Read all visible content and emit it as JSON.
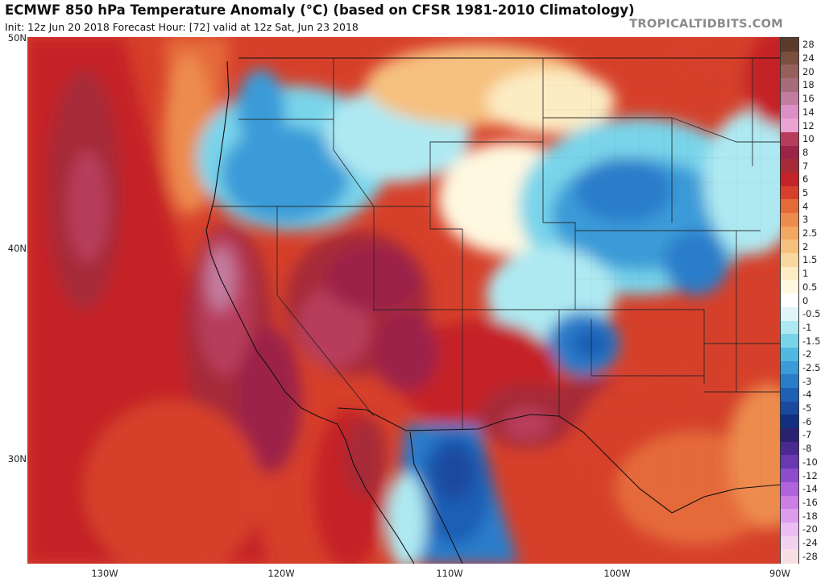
{
  "header": {
    "title": "ECMWF 850 hPa Temperature Anomaly (°C) (based on CFSR 1981-2010 Climatology)",
    "subtitle": "Init: 12z Jun 20 2018   Forecast Hour: [72]   valid at 12z Sat, Jun 23 2018",
    "brand": "TROPICALTIDBITS.COM"
  },
  "map": {
    "region": "Western and Central United States",
    "variable": "850 hPa temperature anomaly",
    "lat_labels": [
      "50N",
      "40N",
      "30N"
    ],
    "lon_labels": [
      "130W",
      "120W",
      "110W",
      "100W",
      "90W"
    ]
  },
  "colorbar": {
    "labels": [
      "28",
      "24",
      "20",
      "18",
      "16",
      "14",
      "12",
      "10",
      "8",
      "7",
      "6",
      "5",
      "4",
      "3",
      "2.5",
      "2",
      "1.5",
      "1",
      "0.5",
      "0",
      "-0.5",
      "-1",
      "-1.5",
      "-2",
      "-2.5",
      "-3",
      "-4",
      "-5",
      "-6",
      "-7",
      "-8",
      "-10",
      "-12",
      "-14",
      "-16",
      "-18",
      "-20",
      "-24",
      "-28"
    ],
    "colors": [
      "#5b3c2c",
      "#7a4f3e",
      "#95605a",
      "#a86b78",
      "#c27c9f",
      "#dc8fc4",
      "#eaa3d3",
      "#b73c5b",
      "#9c2448",
      "#a62a38",
      "#c42428",
      "#d6402a",
      "#e56a3a",
      "#ed8b4e",
      "#f2a762",
      "#f6c07e",
      "#f9d89f",
      "#fcecc3",
      "#fff8e0",
      "#ffffff",
      "#e0f5f8",
      "#aee9f2",
      "#79d4ea",
      "#51b8e2",
      "#3a9bd8",
      "#2b7dca",
      "#1f5fb5",
      "#1a4a9e",
      "#142f80",
      "#2c2170",
      "#4a2a90",
      "#6a38b0",
      "#8c4ccc",
      "#b063dd",
      "#cc7ee6",
      "#de9dec",
      "#ecbdf2",
      "#f3d1f1",
      "#f8dfe4"
    ]
  },
  "colors": {
    "hot": "#c42428",
    "cold": "#1f5fb5"
  }
}
